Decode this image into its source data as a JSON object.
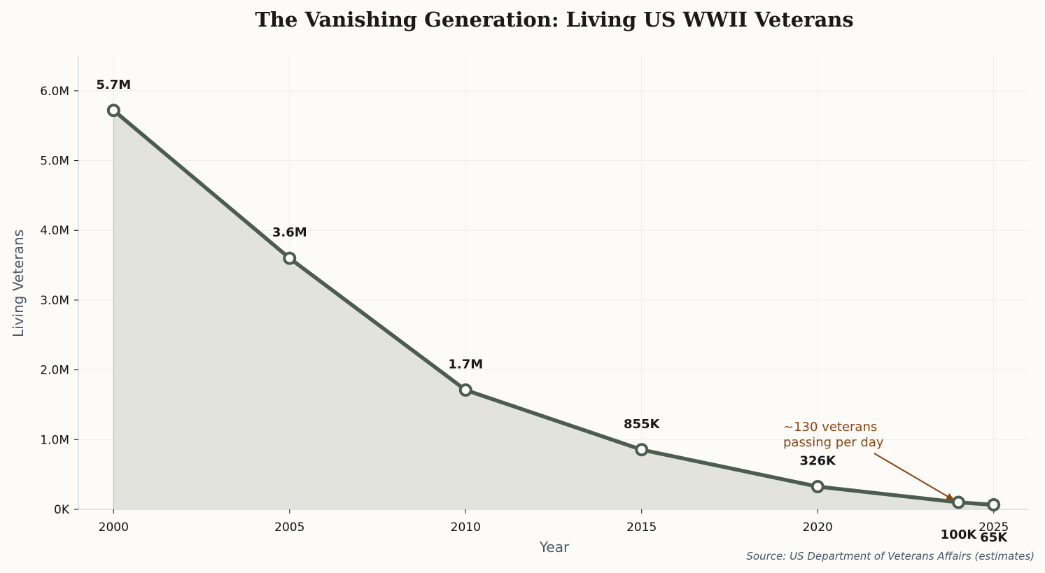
{
  "chart_data": {
    "type": "area",
    "title": "The Vanishing Generation: Living US WWII Veterans",
    "xlabel": "Year",
    "ylabel": "Living Veterans",
    "x": [
      2000,
      2005,
      2010,
      2015,
      2020,
      2024,
      2025
    ],
    "values": [
      5720000,
      3600000,
      1710000,
      855000,
      326000,
      100000,
      65000
    ],
    "data_labels": [
      "5.7M",
      "3.6M",
      "1.7M",
      "855K",
      "326K",
      "100K",
      "65K"
    ],
    "xlim": [
      1999,
      2026
    ],
    "ylim": [
      0,
      6500000
    ],
    "xticks": [
      2000,
      2005,
      2010,
      2015,
      2020,
      2025
    ],
    "xtick_labels": [
      "2000",
      "2005",
      "2010",
      "2015",
      "2020",
      "2025"
    ],
    "yticks": [
      0,
      1000000,
      2000000,
      3000000,
      4000000,
      5000000,
      6000000
    ],
    "ytick_labels": [
      "0K",
      "1.0M",
      "2.0M",
      "3.0M",
      "4.0M",
      "5.0M",
      "6.0M"
    ],
    "grid": true,
    "annotation": {
      "lines": [
        "~130 veterans",
        "passing per day"
      ],
      "x": 2024,
      "y": 100000
    },
    "source": "Source: US Department of Veterans Affairs (estimates)",
    "colors": {
      "line": "#4a5d4e",
      "fill": "#e2e3dd",
      "annotation": "#8b4513",
      "background": "#fcfbf8",
      "grid": "#f0efec",
      "axis": "#d4dbe3"
    }
  }
}
